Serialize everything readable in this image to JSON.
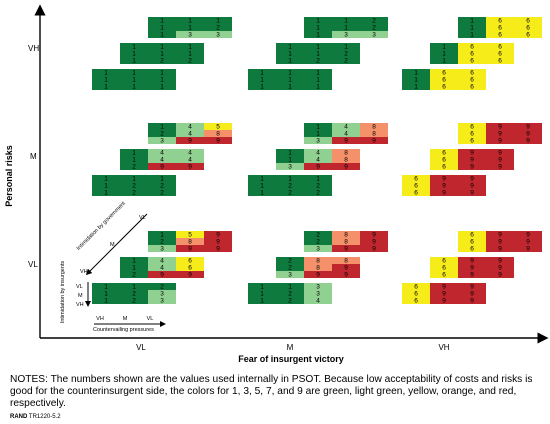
{
  "colors": {
    "1": "#0e7a3e",
    "3": "#90d090",
    "5": "#f5ec1a",
    "7": "#f4916a",
    "9": "#c0262e"
  },
  "axes": {
    "y_label": "Personal risks",
    "x_label": "Fear of insurgent victory",
    "y_ticks": [
      "VH",
      "M",
      "VL"
    ],
    "x_ticks": [
      "VL",
      "M",
      "VH"
    ]
  },
  "legend": {
    "gov_title": "Intimidation by government",
    "gov_levels": [
      "VL",
      "M",
      "VH"
    ],
    "ins_title": "Intimidation by insurgents",
    "ins_levels": [
      "VL",
      "M",
      "VH"
    ],
    "cp_title": "Countervailing pressures",
    "cp_levels": [
      "VH",
      "M",
      "VL"
    ]
  },
  "matrices": {
    "VL": {
      "VH": [
        [
          [
            1,
            1,
            1
          ],
          [
            1,
            1,
            2
          ],
          [
            1,
            3,
            3
          ]
        ],
        [
          [
            1,
            1,
            1
          ],
          [
            1,
            1,
            1
          ],
          [
            1,
            2,
            2
          ]
        ],
        [
          [
            1,
            1,
            1
          ],
          [
            1,
            1,
            1
          ],
          [
            1,
            1,
            1
          ]
        ]
      ],
      "M": [
        [
          [
            1,
            4,
            5
          ],
          [
            2,
            4,
            8
          ],
          [
            3,
            9,
            9
          ]
        ],
        [
          [
            1,
            4,
            4
          ],
          [
            1,
            4,
            4
          ],
          [
            2,
            9,
            9
          ]
        ],
        [
          [
            1,
            1,
            1
          ],
          [
            1,
            2,
            2
          ],
          [
            1,
            2,
            2
          ]
        ]
      ],
      "VL": [
        [
          [
            1,
            5,
            9
          ],
          [
            2,
            8,
            9
          ],
          [
            3,
            9,
            9
          ]
        ],
        [
          [
            1,
            4,
            6
          ],
          [
            1,
            4,
            6
          ],
          [
            2,
            9,
            9
          ]
        ],
        [
          [
            1,
            1,
            2
          ],
          [
            1,
            2,
            3
          ],
          [
            1,
            2,
            3
          ]
        ]
      ]
    },
    "M": {
      "VH": [
        [
          [
            1,
            1,
            2
          ],
          [
            1,
            1,
            2
          ],
          [
            1,
            3,
            3
          ]
        ],
        [
          [
            1,
            1,
            1
          ],
          [
            1,
            1,
            2
          ],
          [
            1,
            2,
            2
          ]
        ],
        [
          [
            1,
            1,
            1
          ],
          [
            1,
            1,
            1
          ],
          [
            1,
            1,
            1
          ]
        ]
      ],
      "M": [
        [
          [
            1,
            4,
            8
          ],
          [
            1,
            4,
            8
          ],
          [
            3,
            9,
            9
          ]
        ],
        [
          [
            1,
            4,
            8
          ],
          [
            1,
            4,
            8
          ],
          [
            3,
            9,
            9
          ]
        ],
        [
          [
            1,
            1,
            1
          ],
          [
            1,
            2,
            2
          ],
          [
            1,
            2,
            2
          ]
        ]
      ],
      "VL": [
        [
          [
            2,
            8,
            9
          ],
          [
            2,
            8,
            9
          ],
          [
            3,
            9,
            9
          ]
        ],
        [
          [
            2,
            8,
            8
          ],
          [
            2,
            8,
            9
          ],
          [
            3,
            9,
            9
          ]
        ],
        [
          [
            1,
            1,
            3
          ],
          [
            1,
            2,
            3
          ],
          [
            1,
            2,
            4
          ]
        ]
      ]
    },
    "VH": {
      "VH": [
        [
          [
            1,
            6,
            6
          ],
          [
            1,
            6,
            6
          ],
          [
            1,
            6,
            6
          ]
        ],
        [
          [
            1,
            6,
            6
          ],
          [
            1,
            6,
            6
          ],
          [
            1,
            6,
            6
          ]
        ],
        [
          [
            1,
            6,
            6
          ],
          [
            1,
            6,
            6
          ],
          [
            1,
            6,
            6
          ]
        ]
      ],
      "M": [
        [
          [
            6,
            9,
            9
          ],
          [
            6,
            9,
            9
          ],
          [
            6,
            9,
            9
          ]
        ],
        [
          [
            6,
            9,
            9
          ],
          [
            6,
            9,
            9
          ],
          [
            6,
            9,
            9
          ]
        ],
        [
          [
            6,
            9,
            9
          ],
          [
            6,
            9,
            9
          ],
          [
            6,
            9,
            9
          ]
        ]
      ],
      "VL": [
        [
          [
            6,
            9,
            9
          ],
          [
            6,
            9,
            9
          ],
          [
            6,
            9,
            9
          ]
        ],
        [
          [
            6,
            9,
            9
          ],
          [
            6,
            9,
            9
          ],
          [
            6,
            9,
            9
          ]
        ],
        [
          [
            6,
            9,
            9
          ],
          [
            6,
            9,
            9
          ],
          [
            6,
            9,
            9
          ]
        ]
      ]
    }
  },
  "notes": "NOTES: The numbers shown are the values used internally in PSOT. Because low acceptability of costs and risks is good for the counterinsurgent side, the colors for 1, 3, 5, 7, and 9 are green, light green, yellow, orange, and red, respectively.",
  "credit": {
    "org": "RAND",
    "id": "TR1220-5.2"
  }
}
